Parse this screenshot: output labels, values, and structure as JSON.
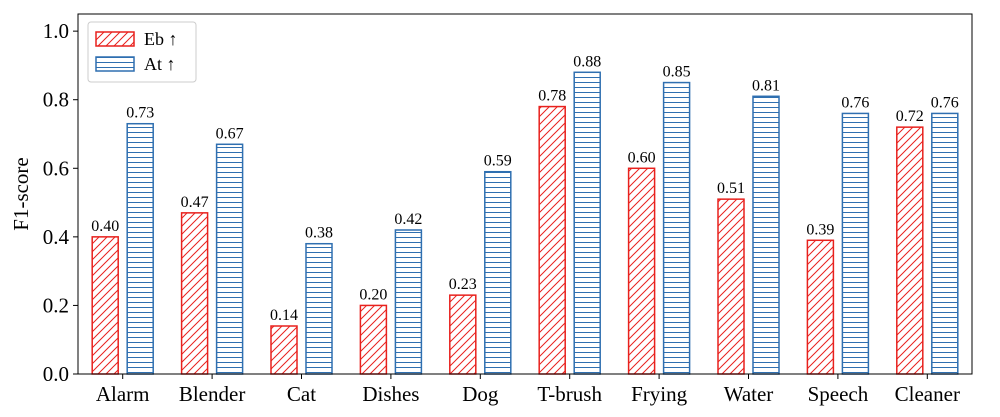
{
  "chart_data": {
    "type": "bar",
    "title": "",
    "xlabel": "",
    "ylabel": "F1-score",
    "ylim": [
      0,
      1.05
    ],
    "yticks": [
      0.0,
      0.2,
      0.4,
      0.6,
      0.8,
      1.0
    ],
    "ytick_labels": [
      "0.0",
      "0.2",
      "0.4",
      "0.6",
      "0.8",
      "1.0"
    ],
    "grid": false,
    "legend_position": "top-left",
    "categories": [
      "Alarm",
      "Blender",
      "Cat",
      "Dishes",
      "Dog",
      "T-brush",
      "Frying",
      "Water",
      "Speech",
      "Cleaner"
    ],
    "series": [
      {
        "name": "Eb ↑",
        "color": "#e8211d",
        "hatch": "diagonal",
        "values": [
          0.4,
          0.47,
          0.14,
          0.2,
          0.23,
          0.78,
          0.6,
          0.51,
          0.39,
          0.72
        ],
        "labels": [
          "0.40",
          "0.47",
          "0.14",
          "0.20",
          "0.23",
          "0.78",
          "0.60",
          "0.51",
          "0.39",
          "0.72"
        ]
      },
      {
        "name": "At ↑",
        "color": "#2f6fb0",
        "hatch": "horizontal",
        "values": [
          0.73,
          0.67,
          0.38,
          0.42,
          0.59,
          0.88,
          0.85,
          0.81,
          0.76,
          0.76
        ],
        "labels": [
          "0.73",
          "0.67",
          "0.38",
          "0.42",
          "0.59",
          "0.88",
          "0.85",
          "0.81",
          "0.76",
          "0.76"
        ]
      }
    ]
  }
}
